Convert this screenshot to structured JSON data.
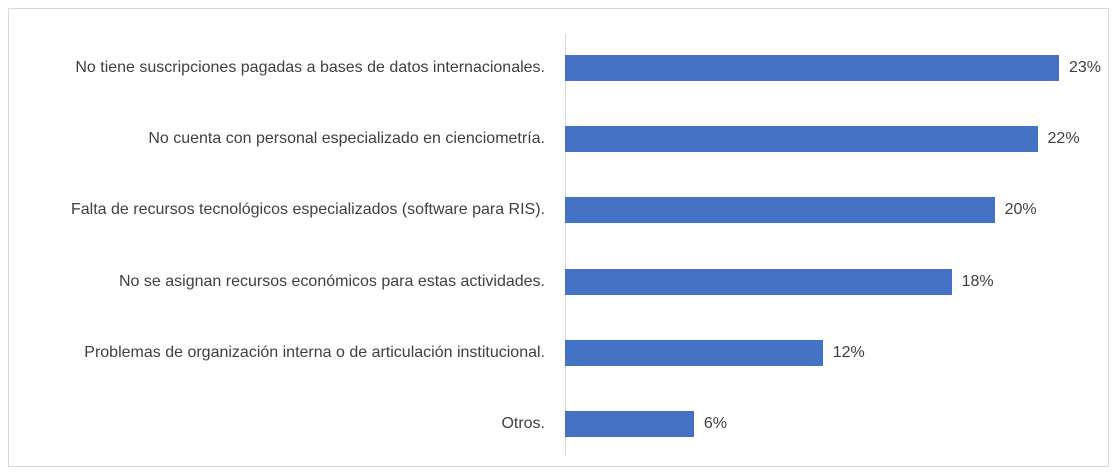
{
  "chart_data": {
    "type": "bar",
    "orientation": "horizontal",
    "categories": [
      "No tiene suscripciones pagadas a bases de datos internacionales.",
      "No cuenta con personal especializado en cienciometría.",
      "Falta de recursos tecnológicos especializados (software para RIS).",
      "No se asignan recursos económicos para estas actividades.",
      "Problemas de organización interna o de articulación institucional.",
      "Otros."
    ],
    "values": [
      23,
      22,
      20,
      18,
      12,
      6
    ],
    "value_labels": [
      "23%",
      "22%",
      "20%",
      "18%",
      "12%",
      "6%"
    ],
    "color": "#4472c4"
  }
}
